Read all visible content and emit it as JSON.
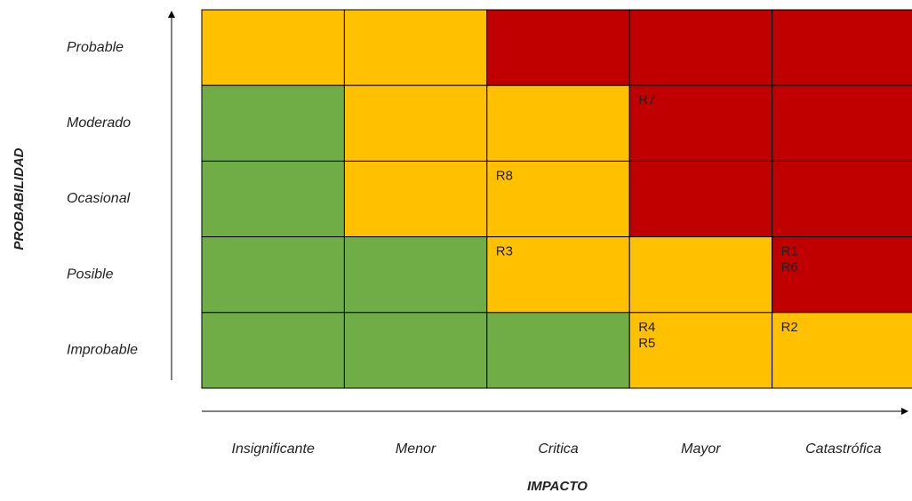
{
  "y_axis_label": "PROBABILIDAD",
  "x_axis_label": "IMPACTO",
  "columns": [
    "Insignificante",
    "Menor",
    "Critica",
    "Mayor",
    "Catastrófica"
  ],
  "rows": [
    {
      "label": "Probable",
      "cells": [
        {
          "color": "#ffc000",
          "risks": []
        },
        {
          "color": "#ffc000",
          "risks": []
        },
        {
          "color": "#c00000",
          "risks": []
        },
        {
          "color": "#c00000",
          "risks": []
        },
        {
          "color": "#c00000",
          "risks": []
        }
      ]
    },
    {
      "label": "Moderado",
      "cells": [
        {
          "color": "#70ad47",
          "risks": []
        },
        {
          "color": "#ffc000",
          "risks": []
        },
        {
          "color": "#ffc000",
          "risks": []
        },
        {
          "color": "#c00000",
          "risks": [
            "R7"
          ]
        },
        {
          "color": "#c00000",
          "risks": []
        }
      ]
    },
    {
      "label": "Ocasional",
      "cells": [
        {
          "color": "#70ad47",
          "risks": []
        },
        {
          "color": "#ffc000",
          "risks": []
        },
        {
          "color": "#ffc000",
          "risks": [
            "R8"
          ]
        },
        {
          "color": "#c00000",
          "risks": []
        },
        {
          "color": "#c00000",
          "risks": []
        }
      ]
    },
    {
      "label": "Posible",
      "cells": [
        {
          "color": "#70ad47",
          "risks": []
        },
        {
          "color": "#70ad47",
          "risks": []
        },
        {
          "color": "#ffc000",
          "risks": [
            "R3"
          ]
        },
        {
          "color": "#ffc000",
          "risks": []
        },
        {
          "color": "#c00000",
          "risks": [
            "R1",
            "R6"
          ]
        }
      ]
    },
    {
      "label": "Improbable",
      "cells": [
        {
          "color": "#70ad47",
          "risks": []
        },
        {
          "color": "#70ad47",
          "risks": []
        },
        {
          "color": "#70ad47",
          "risks": []
        },
        {
          "color": "#ffc000",
          "risks": [
            "R4",
            "R5"
          ]
        },
        {
          "color": "#ffc000",
          "risks": [
            "R2"
          ]
        }
      ]
    }
  ]
}
